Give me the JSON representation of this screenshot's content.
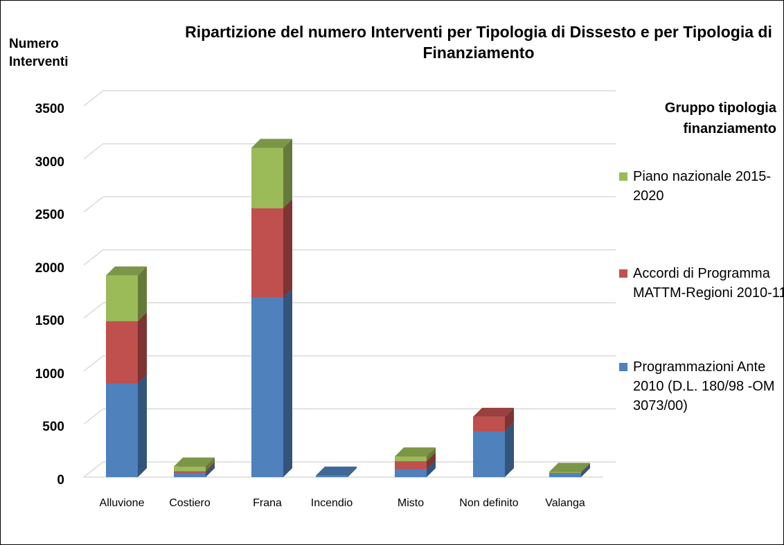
{
  "chart_data": {
    "type": "bar3d_stacked",
    "title": "Ripartizione  del numero Interventi per Tipologia di Dissesto e per Tipologia di Finanziamento",
    "y_label": "Numero Interventi",
    "legend_title": "Gruppo tipologia finanziamento",
    "categories": [
      "Alluvione",
      "Costiero",
      "Frana",
      "Incendio",
      "Misto",
      "Non definito",
      "Valanga"
    ],
    "series": [
      {
        "name": "Programmazioni Ante 2010 (D.L. 180/98 -OM 3073/00)",
        "color": "#4f81bd",
        "values": [
          882,
          40,
          1693,
          15,
          75,
          431,
          35
        ]
      },
      {
        "name": "Accordi di Programma MATTM-Regioni 2010-11",
        "color": "#c0504d",
        "values": [
          588,
          15,
          843,
          0,
          75,
          138,
          5
        ]
      },
      {
        "name": "Piano nazionale 2015-2020",
        "color": "#9bbb59",
        "values": [
          432,
          45,
          569,
          0,
          45,
          0,
          10
        ]
      }
    ],
    "ylim": [
      0,
      3500
    ],
    "yticks": [
      0,
      500,
      1000,
      1500,
      2000,
      2500,
      3000,
      3500
    ],
    "grid": true
  }
}
